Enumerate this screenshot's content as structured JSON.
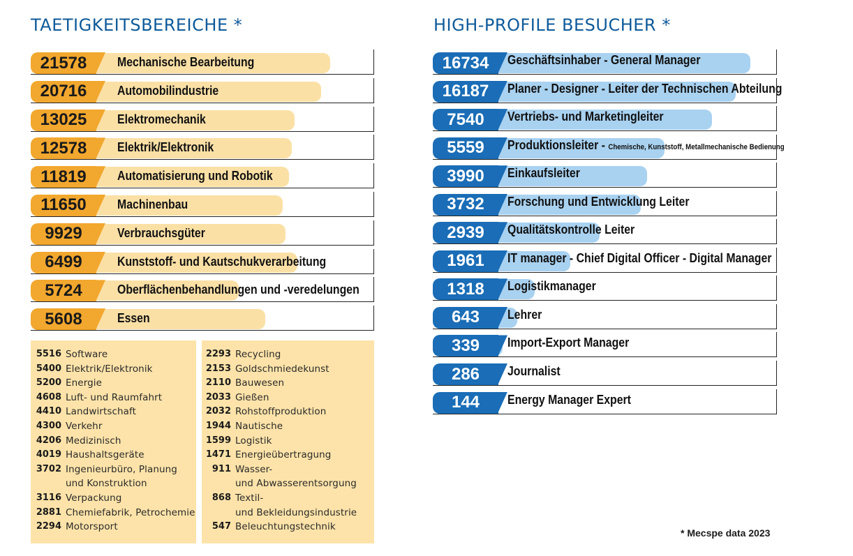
{
  "colors": {
    "title": "#0e5a9a",
    "left_badge": "#f2a72e",
    "left_bar": "#fbe0a6",
    "right_badge": "#1a6db6",
    "right_bar": "#a9d2f1",
    "list_background": "#fde3a9"
  },
  "chart_data": [
    {
      "type": "bar",
      "title": "TAETIGKEITSBEREICHE *",
      "categories": [
        "Mechanische Bearbeitung",
        "Automobilindustrie",
        "Elektromechanik",
        "Elektrik/Elektronik",
        "Automatisierung und Robotik",
        "Machinenbau",
        "Verbrauchsgüter",
        "Kunststoff- und Kautschukverarbeitung",
        "Oberflächenbehandlungen und -veredelungen",
        "Essen"
      ],
      "values": [
        21578,
        20716,
        13025,
        12578,
        11819,
        11650,
        9929,
        6499,
        5724,
        5608
      ],
      "rows": [
        {
          "value": "21578",
          "label": "Mechanische Bearbeitung",
          "bar_fraction": 0.85
        },
        {
          "value": "20716",
          "label": "Automobilindustrie",
          "bar_fraction": 0.82
        },
        {
          "value": "13025",
          "label": "Elektromechanik",
          "bar_fraction": 0.73
        },
        {
          "value": "12578",
          "label": "Elektrik/Elektronik",
          "bar_fraction": 0.72
        },
        {
          "value": "11819",
          "label": "Automatisierung und Robotik",
          "bar_fraction": 0.71
        },
        {
          "value": "11650",
          "label": "Machinenbau",
          "bar_fraction": 0.69
        },
        {
          "value": "9929",
          "label": "Verbrauchsgüter",
          "bar_fraction": 0.7
        },
        {
          "value": "6499",
          "label": "Kunststoff- und Kautschukverarbeitung",
          "bar_fraction": 0.74
        },
        {
          "value": "5724",
          "label": "Oberflächenbehandlungen und -veredelungen",
          "bar_fraction": 0.54
        },
        {
          "value": "5608",
          "label": "Essen",
          "bar_fraction": 0.63
        }
      ],
      "other_list": {
        "column_a": [
          {
            "value": "5516",
            "label": "Software"
          },
          {
            "value": "5400",
            "label": "Elektrik/Elektronik"
          },
          {
            "value": "5200",
            "label": "Energie"
          },
          {
            "value": "4608",
            "label": "Luft- und Raumfahrt"
          },
          {
            "value": "4410",
            "label": "Landwirtschaft"
          },
          {
            "value": "4300",
            "label": "Verkehr"
          },
          {
            "value": "4206",
            "label": "Medizinisch"
          },
          {
            "value": "4019",
            "label": "Haushaltsgeräte"
          },
          {
            "value": "3702",
            "label": "Ingenieurbüro, Planung\nund Konstruktion"
          },
          {
            "value": "3116",
            "label": "Verpackung"
          },
          {
            "value": "2881",
            "label": "Chemiefabrik, Petrochemie"
          },
          {
            "value": "2294",
            "label": "Motorsport"
          }
        ],
        "column_b": [
          {
            "value": "2293",
            "label": "Recycling"
          },
          {
            "value": "2153",
            "label": "Goldschmiedekunst"
          },
          {
            "value": "2110",
            "label": "Bauwesen"
          },
          {
            "value": "2033",
            "label": "Gießen"
          },
          {
            "value": "2032",
            "label": "Rohstoffproduktion"
          },
          {
            "value": "1944",
            "label": "Nautische"
          },
          {
            "value": "1599",
            "label": "Logistik"
          },
          {
            "value": "1471",
            "label": "Energieübertragung"
          },
          {
            "value": "911",
            "label": "Wasser-\nund Abwasserentsorgung"
          },
          {
            "value": "868",
            "label": "Textil-\nund Bekleidungsindustrie"
          },
          {
            "value": "547",
            "label": "Beleuchtungstechnik"
          }
        ]
      }
    },
    {
      "type": "bar",
      "title": "HIGH-PROFILE BESUCHER *",
      "categories": [
        "Geschäftsinhaber - General Manager",
        "Planer - Designer - Leiter der Technischen Abteilung",
        "Vertriebs- und Marketingleiter",
        "Produktionsleiter - Chemische, Kunststoff, Metallmechanische Bedienung",
        "Einkaufsleiter",
        "Forschung und Entwicklung Leiter",
        "Qualitätskontrolle Leiter",
        "IT manager - Chief Digital Officer - Digital Manager",
        "Logistikmanager",
        "Lehrer",
        "Import-Export Manager",
        "Journalist",
        "Energy Manager Expert"
      ],
      "values": [
        16734,
        16187,
        7540,
        5559,
        3990,
        3732,
        2939,
        1961,
        1318,
        643,
        339,
        286,
        144
      ],
      "rows": [
        {
          "value": "16734",
          "label": "Geschäftsinhaber - General Manager",
          "bar_fraction": 0.91
        },
        {
          "value": "16187",
          "label": "Planer - Designer - Leiter der Technischen Abteilung",
          "bar_fraction": 0.86
        },
        {
          "value": "7540",
          "label": "Vertriebs- und Marketingleiter",
          "bar_fraction": 0.78
        },
        {
          "value": "5559",
          "label": "Produktionsleiter - ",
          "note": "Chemische, Kunststoff, Metallmechanische Bedienung",
          "bar_fraction": 0.62
        },
        {
          "value": "3990",
          "label": "Einkaufsleiter",
          "bar_fraction": 0.56
        },
        {
          "value": "3732",
          "label": "Forschung und Entwicklung Leiter",
          "bar_fraction": 0.54
        },
        {
          "value": "2939",
          "label": "Qualitätskontrolle Leiter",
          "bar_fraction": 0.4
        },
        {
          "value": "1961",
          "label": "IT manager - Chief Digital Officer - Digital Manager",
          "bar_fraction": 0.3
        },
        {
          "value": "1318",
          "label": "Logistikmanager",
          "bar_fraction": 0.18
        },
        {
          "value": "643",
          "label": "Lehrer",
          "bar_fraction": 0.12
        },
        {
          "value": "339",
          "label": "Import-Export Manager",
          "bar_fraction": 0.07
        },
        {
          "value": "286",
          "label": "Journalist",
          "bar_fraction": 0.06
        },
        {
          "value": "144",
          "label": "Energy Manager Expert",
          "bar_fraction": 0.04
        }
      ]
    }
  ],
  "footnote": "* Mecspe data 2023"
}
